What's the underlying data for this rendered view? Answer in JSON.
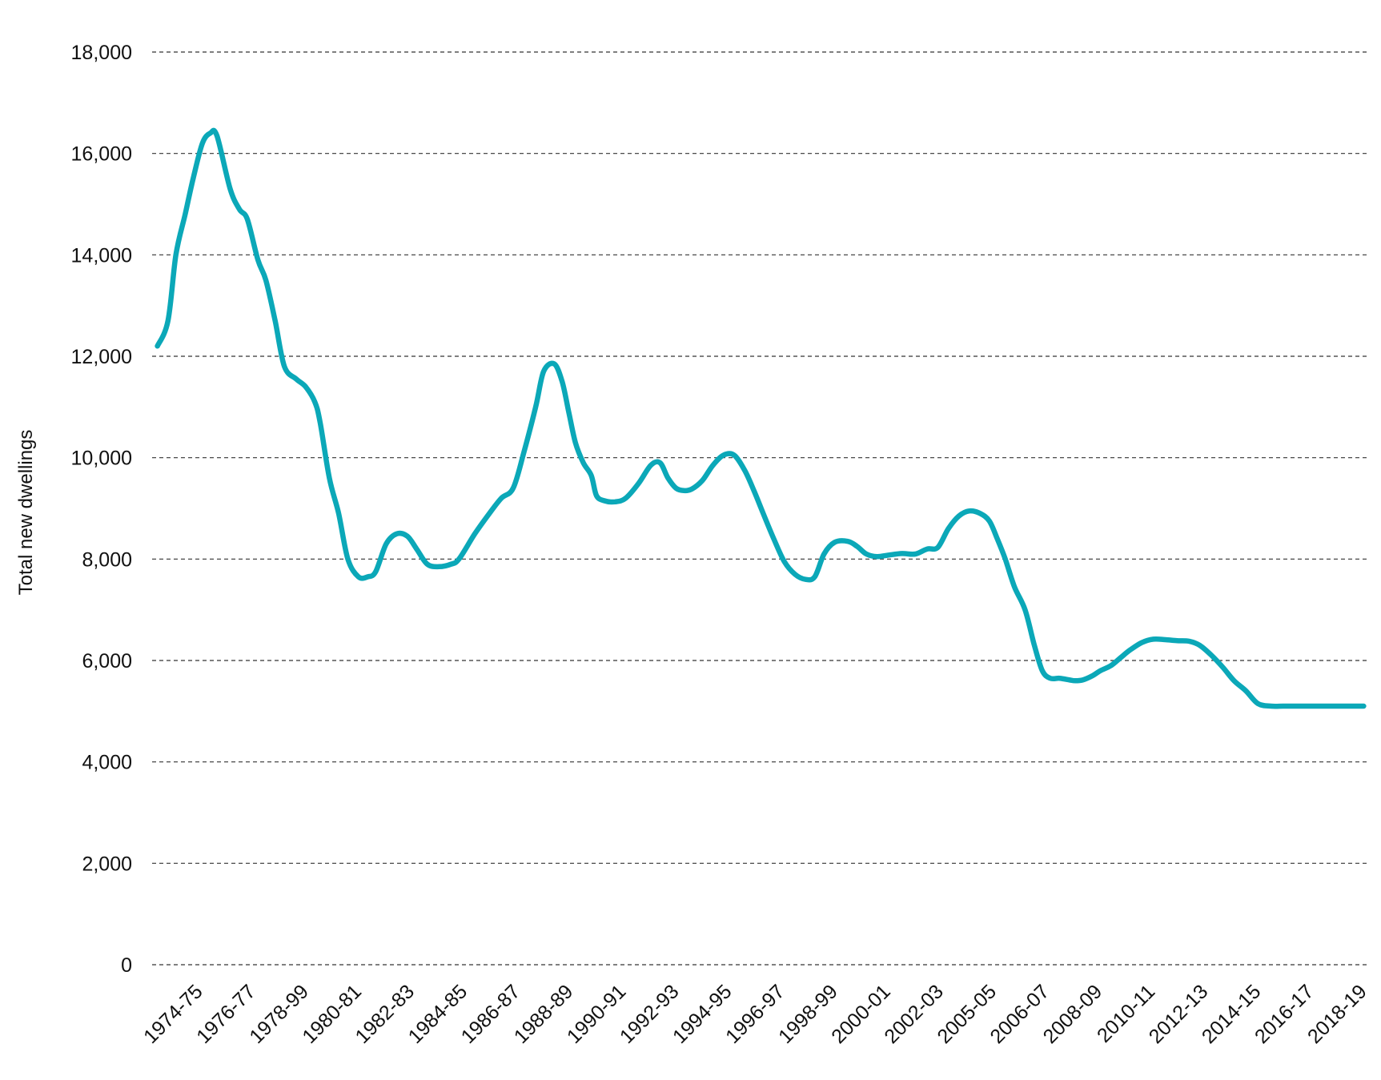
{
  "colors": {
    "series": "#0ba8b8",
    "grid": "#333333",
    "text": "#111111"
  },
  "chart_data": {
    "type": "line",
    "title": "",
    "xlabel": "",
    "ylabel": "Total new dwellings",
    "ylim": [
      0,
      18000
    ],
    "grid": true,
    "yticks": [
      {
        "value": 0,
        "label": "0"
      },
      {
        "value": 2000,
        "label": "2,000"
      },
      {
        "value": 4000,
        "label": "4,000"
      },
      {
        "value": 6000,
        "label": "6,000"
      },
      {
        "value": 8000,
        "label": "8,000"
      },
      {
        "value": 10000,
        "label": "10,000"
      },
      {
        "value": 12000,
        "label": "12,000"
      },
      {
        "value": 14000,
        "label": "14,000"
      },
      {
        "value": 16000,
        "label": "16,000"
      },
      {
        "value": 18000,
        "label": "18,000"
      }
    ],
    "xlim": [
      1974.0,
      2020.0
    ],
    "xticks": [
      {
        "value": 1974.5,
        "label": "1974-75"
      },
      {
        "value": 1976.5,
        "label": "1976-77"
      },
      {
        "value": 1978.5,
        "label": "1978-99"
      },
      {
        "value": 1980.5,
        "label": "1980-81"
      },
      {
        "value": 1982.5,
        "label": "1982-83"
      },
      {
        "value": 1984.5,
        "label": "1984-85"
      },
      {
        "value": 1986.5,
        "label": "1986-87"
      },
      {
        "value": 1988.5,
        "label": "1988-89"
      },
      {
        "value": 1990.5,
        "label": "1990-91"
      },
      {
        "value": 1992.5,
        "label": "1992-93"
      },
      {
        "value": 1994.5,
        "label": "1994-95"
      },
      {
        "value": 1996.5,
        "label": "1996-97"
      },
      {
        "value": 1998.5,
        "label": "1998-99"
      },
      {
        "value": 2000.5,
        "label": "2000-01"
      },
      {
        "value": 2002.5,
        "label": "2002-03"
      },
      {
        "value": 2004.5,
        "label": "2005-05"
      },
      {
        "value": 2006.5,
        "label": "2006-07"
      },
      {
        "value": 2008.5,
        "label": "2008-09"
      },
      {
        "value": 2010.5,
        "label": "2010-11"
      },
      {
        "value": 2012.5,
        "label": "2012-13"
      },
      {
        "value": 2014.5,
        "label": "2014-15"
      },
      {
        "value": 2016.5,
        "label": "2016-17"
      },
      {
        "value": 2018.5,
        "label": "2018-19"
      }
    ],
    "series": [
      {
        "name": "",
        "x": [
          1974.2,
          1974.6,
          1974.9,
          1975.25,
          1975.55,
          1975.9,
          1976.2,
          1976.45,
          1976.95,
          1977.3,
          1977.6,
          1978.0,
          1978.3,
          1978.65,
          1979.0,
          1979.45,
          1979.8,
          1980.15,
          1980.35,
          1980.7,
          1981.05,
          1981.4,
          1981.8,
          1982.15,
          1982.45,
          1982.85,
          1983.25,
          1983.65,
          1984.0,
          1984.4,
          1984.85,
          1985.3,
          1985.6,
          1986.2,
          1986.75,
          1987.2,
          1987.65,
          1988.05,
          1988.5,
          1988.8,
          1989.2,
          1989.5,
          1989.75,
          1990.0,
          1990.3,
          1990.6,
          1990.8,
          1991.1,
          1991.5,
          1991.9,
          1992.4,
          1992.85,
          1993.2,
          1993.5,
          1993.8,
          1994.1,
          1994.4,
          1994.8,
          1995.2,
          1995.6,
          1996.0,
          1996.4,
          1996.75,
          1997.1,
          1997.5,
          1997.9,
          1998.3,
          1998.7,
          1999.05,
          1999.4,
          1999.8,
          2000.3,
          2000.65,
          2001.0,
          2001.4,
          2001.85,
          2002.35,
          2002.85,
          2003.3,
          2003.7,
          2004.1,
          2004.5,
          2004.9,
          2005.3,
          2005.65,
          2005.95,
          2006.25,
          2006.6,
          2007.0,
          2007.35,
          2007.65,
          2007.95,
          2008.3,
          2008.65,
          2008.9,
          2009.2,
          2009.55,
          2009.85,
          2010.25,
          2010.6,
          2010.95,
          2011.4,
          2011.85,
          2012.3,
          2012.75,
          2013.2,
          2013.6,
          2014.05,
          2014.5,
          2014.9,
          2015.35,
          2015.8,
          2016.3,
          2016.75,
          2017.2,
          2017.65,
          2018.1,
          2018.55,
          2018.95,
          2019.3,
          2019.6,
          2019.8
        ],
        "values": [
          12200,
          12700,
          14000,
          14800,
          15500,
          16200,
          16400,
          16350,
          15300,
          14900,
          14700,
          13900,
          13500,
          12700,
          11800,
          11550,
          11400,
          11100,
          10700,
          9600,
          8900,
          8000,
          7650,
          7650,
          7750,
          8300,
          8500,
          8450,
          8200,
          7900,
          7850,
          7900,
          8000,
          8500,
          8900,
          9200,
          9400,
          10100,
          11000,
          11700,
          11850,
          11500,
          10900,
          10300,
          9900,
          9650,
          9250,
          9150,
          9130,
          9200,
          9500,
          9850,
          9900,
          9600,
          9400,
          9350,
          9380,
          9550,
          9850,
          10050,
          10050,
          9750,
          9350,
          8900,
          8400,
          7950,
          7700,
          7600,
          7650,
          8100,
          8330,
          8350,
          8250,
          8100,
          8050,
          8080,
          8110,
          8100,
          8200,
          8230,
          8600,
          8850,
          8950,
          8900,
          8750,
          8400,
          8000,
          7450,
          7000,
          6300,
          5800,
          5650,
          5650,
          5620,
          5600,
          5620,
          5700,
          5800,
          5900,
          6050,
          6200,
          6350,
          6420,
          6410,
          6390,
          6380,
          6300,
          6100,
          5850,
          5600,
          5400,
          5150,
          5100,
          5100,
          5100,
          5100,
          5100,
          5100,
          5100,
          5100,
          5100,
          5100
        ]
      }
    ]
  }
}
